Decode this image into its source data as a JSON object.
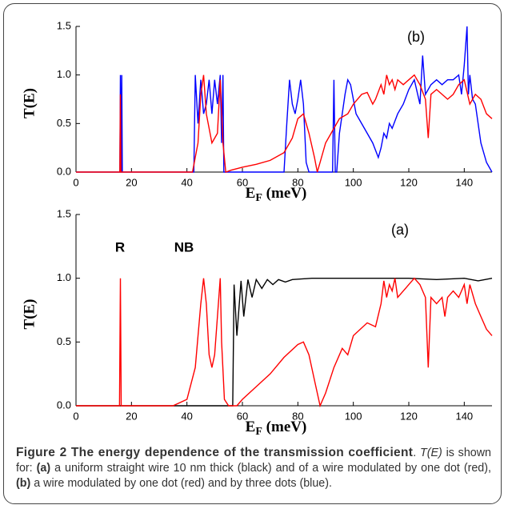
{
  "chart_data": [
    {
      "type": "line",
      "y_label": "T(E)",
      "x_label": [
        "E",
        "F",
        " (meV)"
      ],
      "annotations": [
        "(b)"
      ],
      "xlim": [
        0,
        150
      ],
      "xticks": [
        0,
        20,
        40,
        60,
        80,
        100,
        120,
        140
      ],
      "ylim": [
        0,
        1.5
      ],
      "yticks": [
        {
          "value": 0,
          "label": "0.0"
        },
        {
          "value": 0.5,
          "label": "0.5"
        },
        {
          "value": 1,
          "label": "1.0"
        },
        {
          "value": 1.5,
          "label": "1.5"
        }
      ],
      "series": [
        {
          "color": "#0000ff",
          "x": [
            0,
            15.8,
            16,
            16.2,
            16.3,
            16.5,
            16.7,
            42.5,
            43,
            44,
            45,
            46,
            47,
            48,
            49,
            50,
            51,
            52,
            52.5,
            53,
            53.3,
            75,
            76,
            77,
            78,
            79,
            80,
            81,
            82,
            83,
            84,
            92.5,
            93,
            93.5,
            94,
            95,
            97,
            98,
            99,
            101,
            104,
            107,
            109,
            110,
            111,
            112,
            113,
            114,
            116,
            118,
            120,
            122,
            124,
            125,
            126,
            128,
            130,
            132,
            134,
            136,
            138,
            139,
            140,
            141,
            141.5,
            142,
            143,
            144,
            146,
            148,
            150
          ],
          "values": [
            0,
            0,
            1,
            0,
            0,
            1,
            0,
            0,
            1,
            0.5,
            0.95,
            0.6,
            0.7,
            0.95,
            0.6,
            0.95,
            0.7,
            1,
            0.3,
            1,
            0,
            0,
            0.5,
            0.95,
            0.7,
            0.6,
            0.75,
            0.95,
            0.7,
            0.1,
            0,
            0,
            0.95,
            0,
            0,
            0.4,
            0.8,
            0.95,
            0.9,
            0.6,
            0.45,
            0.3,
            0.15,
            0.25,
            0.4,
            0.35,
            0.5,
            0.45,
            0.6,
            0.7,
            0.85,
            0.95,
            0.7,
            1.2,
            0.8,
            0.9,
            0.95,
            0.9,
            0.95,
            0.95,
            1,
            0.8,
            1.1,
            1.5,
            0.8,
            1,
            0.75,
            0.7,
            0.3,
            0.1,
            0
          ]
        },
        {
          "color": "#ff0000",
          "x": [
            0,
            15.8,
            16,
            16.2,
            42,
            44,
            45,
            46,
            47,
            49,
            51,
            52,
            53,
            54,
            56,
            60,
            65,
            70,
            75,
            78,
            80,
            82,
            84,
            86,
            87,
            88,
            90,
            93,
            95,
            98,
            100,
            103,
            105,
            107,
            108,
            110,
            111,
            112,
            113,
            114,
            115,
            116,
            118,
            120,
            122,
            124,
            126,
            127,
            128,
            130,
            132,
            134,
            136,
            138,
            140,
            142,
            144,
            146,
            148,
            150
          ],
          "values": [
            0,
            0,
            0.8,
            0,
            0,
            0.3,
            0.8,
            1,
            0.6,
            0.3,
            0.4,
            0.95,
            0.3,
            0,
            0.02,
            0.05,
            0.08,
            0.12,
            0.2,
            0.35,
            0.55,
            0.6,
            0.4,
            0.15,
            0,
            0.1,
            0.3,
            0.45,
            0.55,
            0.6,
            0.7,
            0.8,
            0.82,
            0.7,
            0.75,
            0.9,
            0.8,
            1,
            0.9,
            0.95,
            0.85,
            0.95,
            0.9,
            0.95,
            1,
            0.9,
            0.75,
            0.35,
            0.8,
            0.85,
            0.8,
            0.75,
            0.8,
            0.9,
            0.95,
            0.7,
            0.8,
            0.75,
            0.6,
            0.55
          ]
        }
      ]
    },
    {
      "type": "line",
      "y_label": "T(E)",
      "x_label": [
        "E",
        "F",
        " (meV)"
      ],
      "annotations": [
        "(a)",
        "R",
        "NB"
      ],
      "xlim": [
        0,
        150
      ],
      "xticks": [
        0,
        20,
        40,
        60,
        80,
        100,
        120,
        140
      ],
      "ylim": [
        0,
        1.5
      ],
      "yticks": [
        {
          "value": 0,
          "label": "0.0"
        },
        {
          "value": 0.5,
          "label": "0.5"
        },
        {
          "value": 1,
          "label": "1.0"
        },
        {
          "value": 1.5,
          "label": "1.5"
        }
      ],
      "series": [
        {
          "color": "#000000",
          "x": [
            0,
            56.5,
            57,
            58,
            59.5,
            60.5,
            62,
            63.5,
            65,
            67,
            69,
            71,
            73,
            75.5,
            78,
            85,
            120,
            130,
            140,
            145,
            150
          ],
          "values": [
            0,
            0,
            0.95,
            0.55,
            0.98,
            0.7,
            0.99,
            0.85,
            0.99,
            0.92,
            0.99,
            0.95,
            0.99,
            0.97,
            0.99,
            1,
            1,
            0.99,
            1,
            0.98,
            1
          ]
        },
        {
          "color": "#ff0000",
          "x": [
            0,
            15.7,
            16,
            16.3,
            35,
            40,
            43,
            45,
            46,
            47,
            48,
            49,
            50,
            51,
            52,
            52.5,
            53.5,
            55,
            58,
            60,
            65,
            70,
            75,
            80,
            82,
            84,
            86,
            88,
            90,
            93,
            96,
            98,
            100,
            105,
            108,
            110,
            111,
            112,
            113,
            114,
            115,
            116,
            118,
            120,
            122,
            124,
            126,
            127,
            128,
            130,
            132,
            133,
            134,
            136,
            138,
            140,
            141,
            142,
            144,
            146,
            148,
            150
          ],
          "values": [
            0,
            0,
            1,
            0,
            0,
            0.05,
            0.3,
            0.8,
            1,
            0.8,
            0.4,
            0.3,
            0.4,
            0.7,
            1,
            0.5,
            0.05,
            0,
            0,
            0.05,
            0.15,
            0.25,
            0.38,
            0.48,
            0.5,
            0.4,
            0.2,
            0,
            0.1,
            0.3,
            0.45,
            0.4,
            0.55,
            0.65,
            0.62,
            0.8,
            0.98,
            0.85,
            0.95,
            0.9,
            1,
            0.85,
            0.9,
            0.95,
            1,
            0.95,
            0.85,
            0.3,
            0.85,
            0.8,
            0.85,
            0.7,
            0.85,
            0.9,
            0.85,
            0.95,
            0.8,
            0.95,
            0.8,
            0.7,
            0.6,
            0.55
          ]
        }
      ]
    }
  ],
  "caption": [
    "Figure 2 The energy dependence of the transmission coefficient",
    ". ",
    "T(E)",
    " is shown for: ",
    "(a)",
    " a uniform straight wire 10 nm thick (black) and of a wire modulated by one dot (red), ",
    "(b)",
    " a wire modulated by one dot (red) and by three dots (blue)."
  ]
}
